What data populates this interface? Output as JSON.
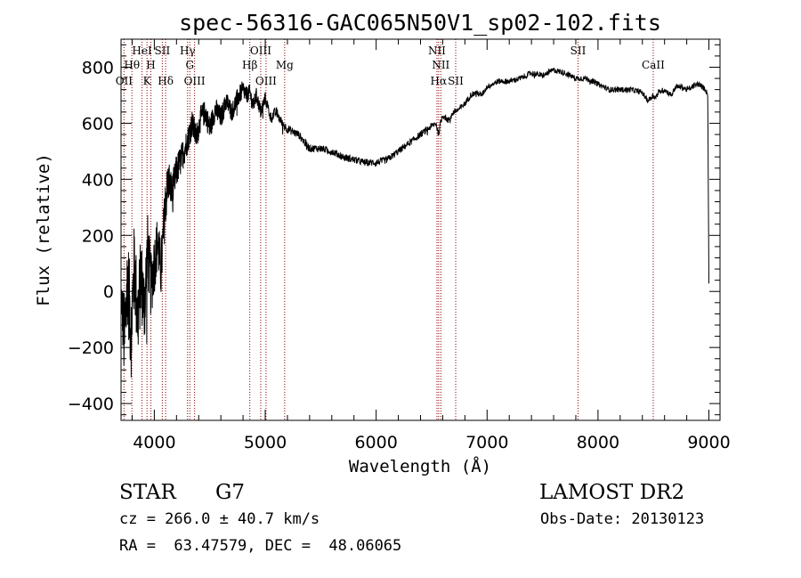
{
  "chart_data": {
    "type": "line",
    "title": "spec-56316-GAC065N50V1_sp02-102.fits",
    "xlabel": "Wavelength (Å)",
    "ylabel": "Flux (relative)",
    "xlim": [
      3700,
      9100
    ],
    "ylim": [
      -460,
      900
    ],
    "x_ticks": [
      4000,
      5000,
      6000,
      7000,
      8000,
      9000
    ],
    "y_ticks": [
      -400,
      -200,
      0,
      200,
      400,
      600,
      800
    ],
    "spectrum_anchors": {
      "x": [
        3700,
        3730,
        3760,
        3790,
        3820,
        3850,
        3880,
        3910,
        3940,
        3970,
        4000,
        4030,
        4060,
        4100,
        4130,
        4160,
        4200,
        4250,
        4300,
        4340,
        4380,
        4420,
        4460,
        4500,
        4550,
        4600,
        4650,
        4700,
        4750,
        4800,
        4830,
        4861,
        4890,
        4920,
        4960,
        5000,
        5050,
        5100,
        5150,
        5200,
        5300,
        5400,
        5500,
        5600,
        5700,
        5800,
        5900,
        6000,
        6100,
        6200,
        6300,
        6400,
        6500,
        6540,
        6563,
        6580,
        6600,
        6650,
        6700,
        6750,
        6800,
        6850,
        6900,
        6950,
        7000,
        7050,
        7100,
        7200,
        7300,
        7400,
        7500,
        7600,
        7700,
        7800,
        7900,
        8000,
        8100,
        8200,
        8300,
        8400,
        8450,
        8498,
        8520,
        8542,
        8600,
        8662,
        8700,
        8750,
        8800,
        8850,
        8900,
        8940,
        8970,
        8990,
        9000
      ],
      "y": [
        0,
        -180,
        50,
        -150,
        100,
        -100,
        60,
        -60,
        150,
        20,
        100,
        180,
        70,
        320,
        400,
        350,
        430,
        480,
        540,
        600,
        550,
        620,
        640,
        580,
        650,
        620,
        680,
        640,
        690,
        720,
        700,
        710,
        660,
        700,
        640,
        690,
        620,
        640,
        600,
        580,
        560,
        510,
        510,
        500,
        480,
        470,
        460,
        460,
        470,
        500,
        530,
        560,
        590,
        600,
        560,
        600,
        630,
        610,
        640,
        650,
        670,
        700,
        710,
        700,
        730,
        740,
        750,
        750,
        760,
        780,
        770,
        790,
        780,
        760,
        760,
        740,
        720,
        720,
        720,
        710,
        680,
        700,
        690,
        710,
        720,
        700,
        730,
        730,
        720,
        730,
        740,
        730,
        720,
        700,
        0
      ],
      "noise_scale": [
        60,
        180,
        170,
        170,
        160,
        160,
        150,
        140,
        130,
        120,
        110,
        100,
        100,
        90,
        80,
        70,
        60,
        55,
        50,
        50,
        45,
        45,
        45,
        45,
        40,
        40,
        35,
        35,
        35,
        35,
        30,
        30,
        30,
        28,
        26,
        24,
        22,
        20,
        18,
        16,
        14,
        14,
        13,
        13,
        13,
        13,
        13,
        13,
        13,
        12,
        12,
        12,
        12,
        12,
        12,
        12,
        12,
        11,
        11,
        11,
        11,
        11,
        10,
        10,
        10,
        10,
        10,
        10,
        10,
        10,
        10,
        10,
        10,
        10,
        10,
        10,
        10,
        10,
        10,
        10,
        10,
        10,
        10,
        10,
        10,
        10,
        10,
        10,
        10,
        10,
        10,
        10,
        10,
        10,
        0
      ]
    },
    "spectral_lines": [
      {
        "label": "OII",
        "x": 3727,
        "row": 2
      },
      {
        "label": "Hθ",
        "x": 3798,
        "row": 1
      },
      {
        "label": "HeI",
        "x": 3889,
        "row": 0
      },
      {
        "label": "K",
        "x": 3934,
        "row": 2
      },
      {
        "label": "H",
        "x": 3969,
        "row": 1
      },
      {
        "label": "SII",
        "x": 4072,
        "row": 0
      },
      {
        "label": "Hδ",
        "x": 4102,
        "row": 2
      },
      {
        "label": "Hγ",
        "x": 4300,
        "row": 0
      },
      {
        "label": "G",
        "x": 4320,
        "row": 1
      },
      {
        "label": "OIII",
        "x": 4363,
        "row": 2
      },
      {
        "label": "Hβ",
        "x": 4861,
        "row": 1
      },
      {
        "label": "OIII",
        "x": 4959,
        "row": 0
      },
      {
        "label": "OIII",
        "x": 5007,
        "row": 2
      },
      {
        "label": "Mg",
        "x": 5175,
        "row": 1
      },
      {
        "label": "NII",
        "x": 6548,
        "row": 0
      },
      {
        "label": "Hα",
        "x": 6563,
        "row": 2
      },
      {
        "label": "NII",
        "x": 6583,
        "row": 1
      },
      {
        "label": "SII",
        "x": 6717,
        "row": 2
      },
      {
        "label": "SII",
        "x": 7820,
        "row": 0
      },
      {
        "label": "CaII",
        "x": 8498,
        "row": 1
      }
    ],
    "grid": false,
    "line_color": "#000000",
    "marker_color": "#8b0000"
  },
  "info": {
    "class_label": "STAR",
    "subclass": "G7",
    "survey": "LAMOST DR2",
    "redshift": "cz = 266.0 ± 40.7 km/s",
    "obs_date": "Obs-Date: 20130123",
    "coords": "RA =  63.47579, DEC =  48.06065"
  }
}
